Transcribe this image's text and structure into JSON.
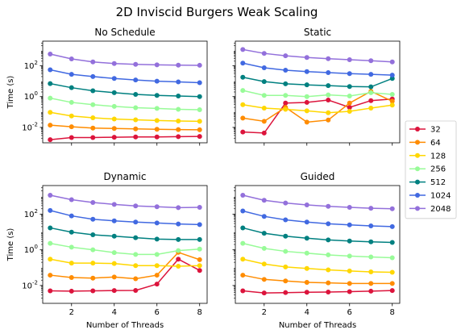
{
  "title": "2D Inviscid Burgers Weak Scaling",
  "legend_labels": [
    "32",
    "64",
    "128",
    "256",
    "512",
    "1024",
    "2048"
  ],
  "chart_data": [
    {
      "type": "line",
      "title": "No Schedule",
      "xlabel": "",
      "ylabel": "Time (s)",
      "yscale": "log",
      "x": [
        1,
        2,
        3,
        4,
        5,
        6,
        7,
        8
      ],
      "xticks": [
        2,
        4,
        6,
        8
      ],
      "xlim": [
        0.65,
        8.35
      ],
      "ylim": [
        0.001,
        4000
      ],
      "yticks": [
        {
          "value": 0.01,
          "label": "10^-2"
        },
        {
          "value": 1,
          "label": "10^0"
        },
        {
          "value": 100,
          "label": "10^2"
        }
      ],
      "series": [
        {
          "name": "32",
          "color": "#dc143c",
          "values": [
            0.0016,
            0.0022,
            0.0022,
            0.0023,
            0.0024,
            0.0024,
            0.0025,
            0.0026
          ]
        },
        {
          "name": "64",
          "color": "#ff8c00",
          "values": [
            0.014,
            0.011,
            0.009,
            0.0085,
            0.008,
            0.0075,
            0.0072,
            0.007
          ]
        },
        {
          "name": "128",
          "color": "#ffd700",
          "values": [
            0.095,
            0.055,
            0.042,
            0.035,
            0.031,
            0.028,
            0.026,
            0.025
          ]
        },
        {
          "name": "256",
          "color": "#98fb98",
          "values": [
            0.8,
            0.42,
            0.3,
            0.23,
            0.19,
            0.17,
            0.15,
            0.14
          ]
        },
        {
          "name": "512",
          "color": "#008080",
          "values": [
            7.0,
            3.8,
            2.4,
            1.8,
            1.4,
            1.2,
            1.1,
            1.0
          ]
        },
        {
          "name": "1024",
          "color": "#4169e1",
          "values": [
            55,
            28,
            20,
            15,
            12,
            10,
            9,
            8
          ]
        },
        {
          "name": "2048",
          "color": "#9370db",
          "values": [
            580,
            280,
            180,
            140,
            125,
            115,
            110,
            108
          ]
        }
      ]
    },
    {
      "type": "line",
      "title": "Static",
      "xlabel": "",
      "ylabel": "",
      "yscale": "log",
      "x": [
        1,
        2,
        3,
        4,
        5,
        6,
        7,
        8
      ],
      "xticks": [
        2,
        4,
        6,
        8
      ],
      "xlim": [
        0.65,
        8.35
      ],
      "ylim": [
        0.001,
        4000
      ],
      "yticks": [
        {
          "value": 0.01,
          "label": ""
        },
        {
          "value": 1,
          "label": ""
        },
        {
          "value": 100,
          "label": ""
        }
      ],
      "series": [
        {
          "name": "32",
          "color": "#dc143c",
          "values": [
            0.005,
            0.0043,
            0.38,
            0.42,
            0.6,
            0.2,
            0.55,
            0.7
          ]
        },
        {
          "name": "64",
          "color": "#ff8c00",
          "values": [
            0.04,
            0.025,
            0.2,
            0.022,
            0.03,
            0.38,
            2.2,
            0.5
          ]
        },
        {
          "name": "128",
          "color": "#ffd700",
          "values": [
            0.3,
            0.18,
            0.15,
            0.12,
            0.09,
            0.11,
            0.18,
            0.28
          ]
        },
        {
          "name": "256",
          "color": "#98fb98",
          "values": [
            2.5,
            1.2,
            1.2,
            1.0,
            1.3,
            1.1,
            1.8,
            1.4
          ]
        },
        {
          "name": "512",
          "color": "#008080",
          "values": [
            18,
            9.5,
            6.8,
            5.8,
            5.2,
            4.5,
            4.3,
            15
          ]
        },
        {
          "name": "1024",
          "color": "#4169e1",
          "values": [
            150,
            75,
            52,
            42,
            36,
            31,
            28,
            25
          ]
        },
        {
          "name": "2048",
          "color": "#9370db",
          "values": [
            1150,
            640,
            450,
            350,
            290,
            250,
            215,
            180
          ]
        }
      ]
    },
    {
      "type": "line",
      "title": "Dynamic",
      "xlabel": "Number of Threads",
      "ylabel": "Time (s)",
      "yscale": "log",
      "x": [
        1,
        2,
        3,
        4,
        5,
        6,
        7,
        8
      ],
      "xticks": [
        2,
        4,
        6,
        8
      ],
      "xlim": [
        0.65,
        8.35
      ],
      "ylim": [
        0.001,
        4000
      ],
      "yticks": [
        {
          "value": 0.01,
          "label": "10^-2"
        },
        {
          "value": 1,
          "label": "10^0"
        },
        {
          "value": 100,
          "label": "10^2"
        }
      ],
      "series": [
        {
          "name": "32",
          "color": "#dc143c",
          "values": [
            0.005,
            0.0048,
            0.005,
            0.0052,
            0.0053,
            0.012,
            0.3,
            0.07
          ]
        },
        {
          "name": "64",
          "color": "#ff8c00",
          "values": [
            0.038,
            0.028,
            0.026,
            0.03,
            0.024,
            0.038,
            0.72,
            0.28
          ]
        },
        {
          "name": "128",
          "color": "#ffd700",
          "values": [
            0.3,
            0.18,
            0.18,
            0.17,
            0.13,
            0.13,
            0.12,
            0.13
          ]
        },
        {
          "name": "256",
          "color": "#98fb98",
          "values": [
            2.3,
            1.4,
            1.0,
            0.7,
            0.55,
            0.55,
            0.9,
            1.1
          ]
        },
        {
          "name": "512",
          "color": "#008080",
          "values": [
            17,
            9.8,
            7.0,
            5.8,
            4.8,
            4.0,
            3.8,
            3.8
          ]
        },
        {
          "name": "1024",
          "color": "#4169e1",
          "values": [
            160,
            80,
            52,
            42,
            36,
            32,
            28,
            26
          ]
        },
        {
          "name": "2048",
          "color": "#9370db",
          "values": [
            1150,
            650,
            450,
            350,
            290,
            260,
            230,
            240
          ]
        }
      ]
    },
    {
      "type": "line",
      "title": "Guided",
      "xlabel": "Number of Threads",
      "ylabel": "",
      "yscale": "log",
      "x": [
        1,
        2,
        3,
        4,
        5,
        6,
        7,
        8
      ],
      "xticks": [
        2,
        4,
        6,
        8
      ],
      "xlim": [
        0.65,
        8.35
      ],
      "ylim": [
        0.001,
        4000
      ],
      "yticks": [
        {
          "value": 0.01,
          "label": ""
        },
        {
          "value": 1,
          "label": ""
        },
        {
          "value": 100,
          "label": ""
        }
      ],
      "series": [
        {
          "name": "32",
          "color": "#dc143c",
          "values": [
            0.005,
            0.0038,
            0.004,
            0.0042,
            0.0043,
            0.0045,
            0.0048,
            0.0052
          ]
        },
        {
          "name": "64",
          "color": "#ff8c00",
          "values": [
            0.038,
            0.022,
            0.018,
            0.015,
            0.014,
            0.013,
            0.013,
            0.013
          ]
        },
        {
          "name": "128",
          "color": "#ffd700",
          "values": [
            0.3,
            0.16,
            0.11,
            0.09,
            0.075,
            0.065,
            0.058,
            0.055
          ]
        },
        {
          "name": "256",
          "color": "#98fb98",
          "values": [
            2.3,
            1.2,
            0.82,
            0.65,
            0.52,
            0.45,
            0.4,
            0.36
          ]
        },
        {
          "name": "512",
          "color": "#008080",
          "values": [
            17,
            8.5,
            5.8,
            4.5,
            3.6,
            3.1,
            2.8,
            2.6
          ]
        },
        {
          "name": "1024",
          "color": "#4169e1",
          "values": [
            150,
            75,
            48,
            36,
            29,
            25,
            22,
            20
          ]
        },
        {
          "name": "2048",
          "color": "#9370db",
          "values": [
            1150,
            600,
            420,
            330,
            275,
            240,
            215,
            200
          ]
        }
      ]
    }
  ]
}
